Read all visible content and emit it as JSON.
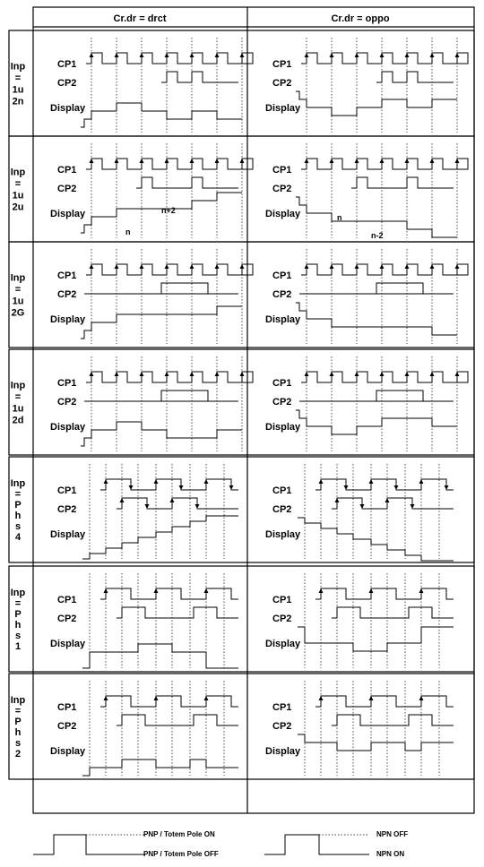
{
  "header": {
    "col1": "Cr.dr = drct",
    "col2": "Cr.dr = oppo"
  },
  "signals": {
    "cp1": "CP1",
    "cp2": "CP2",
    "display": "Display"
  },
  "rows": [
    {
      "id": "1u2n",
      "label": [
        "Inp",
        "=",
        "1u",
        "2n"
      ]
    },
    {
      "id": "1u2u",
      "label": [
        "Inp",
        "=",
        "1u",
        "2u"
      ]
    },
    {
      "id": "1u2G",
      "label": [
        "Inp",
        "=",
        "1u",
        "2G"
      ]
    },
    {
      "id": "1u2d",
      "label": [
        "Inp",
        "=",
        "1u",
        "2d"
      ]
    },
    {
      "id": "phs4",
      "label": [
        "Inp",
        "=",
        "P",
        "h",
        "s",
        "4"
      ]
    },
    {
      "id": "phs1",
      "label": [
        "Inp",
        "=",
        "P",
        "h",
        "s",
        "1"
      ]
    },
    {
      "id": "phs2",
      "label": [
        "Inp",
        "=",
        "P",
        "h",
        "s",
        "2"
      ]
    }
  ],
  "annotations": {
    "n": "n",
    "n_plus_2": "n+2",
    "n_minus_2": "n-2"
  },
  "legend": {
    "pnp_on": "PNP / Totem Pole ON",
    "pnp_off": "PNP / Totem Pole OFF",
    "npn_off": "NPN OFF",
    "npn_on": "NPN ON"
  }
}
